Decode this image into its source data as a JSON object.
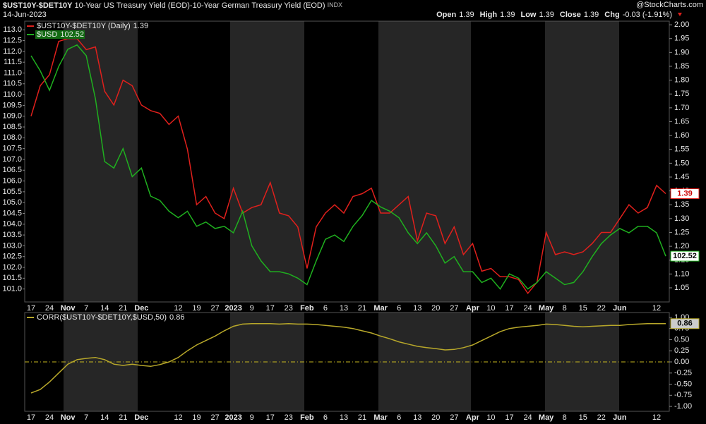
{
  "header": {
    "symbol": "$UST10Y-$DET10Y",
    "description": "10-Year US Treasury Yield (EOD)-10-Year German Treasury Yield (EOD)",
    "exchange": "INDX",
    "date": "14-Jun-2023",
    "brand": "@StockCharts.com",
    "quote": [
      {
        "label": "Open",
        "value": 1.39
      },
      {
        "label": "High",
        "value": 1.39
      },
      {
        "label": "Low",
        "value": 1.39
      },
      {
        "label": "Close",
        "value": 1.39
      },
      {
        "label": "Chg",
        "value": "-0.03 (-1.91%)"
      }
    ]
  },
  "chart_data": [
    {
      "type": "line",
      "y_axis_side": "left",
      "categories": [
        "17",
        null,
        "24",
        null,
        "Nov",
        null,
        "7",
        null,
        "14",
        null,
        "21",
        null,
        "Dec",
        null,
        null,
        null,
        "12",
        null,
        "19",
        null,
        "27",
        null,
        "2023",
        null,
        "9",
        null,
        "17",
        null,
        "23",
        null,
        "Feb",
        null,
        "6",
        null,
        "13",
        null,
        "21",
        null,
        "Mar",
        null,
        "6",
        null,
        "13",
        null,
        "20",
        null,
        "27",
        null,
        "Apr",
        null,
        "10",
        null,
        "17",
        null,
        "24",
        null,
        "May",
        null,
        "8",
        null,
        "15",
        null,
        "22",
        null,
        "Jun",
        null,
        null,
        null,
        "12",
        null
      ],
      "series": [
        {
          "name": "$UST10Y-$DET10Y (Daily)",
          "color": "#e0201c",
          "axis": "y2",
          "values": [
            1.67,
            1.78,
            1.82,
            1.94,
            1.95,
            1.95,
            1.91,
            1.92,
            1.76,
            1.71,
            1.8,
            1.78,
            1.71,
            1.69,
            1.68,
            1.64,
            1.67,
            1.55,
            1.35,
            1.38,
            1.32,
            1.3,
            1.41,
            1.32,
            1.34,
            1.35,
            1.43,
            1.32,
            1.31,
            1.27,
            1.12,
            1.27,
            1.32,
            1.35,
            1.32,
            1.38,
            1.39,
            1.41,
            1.32,
            1.32,
            1.35,
            1.38,
            1.22,
            1.32,
            1.31,
            1.21,
            1.27,
            1.17,
            1.21,
            1.11,
            1.12,
            1.09,
            1.09,
            1.08,
            1.03,
            1.07,
            1.25,
            1.17,
            1.18,
            1.17,
            1.18,
            1.21,
            1.25,
            1.25,
            1.3,
            1.35,
            1.32,
            1.34,
            1.42,
            1.39
          ]
        },
        {
          "name": "$USD",
          "color": "#1fb01f",
          "axis": "y",
          "values": [
            111.8,
            111.1,
            110.2,
            111.3,
            112.1,
            112.3,
            111.8,
            109.8,
            106.9,
            106.6,
            107.5,
            106.2,
            106.6,
            105.3,
            105.1,
            104.6,
            104.3,
            104.6,
            103.9,
            104.1,
            103.8,
            103.9,
            103.6,
            104.6,
            103.0,
            102.3,
            101.8,
            101.8,
            101.7,
            101.5,
            101.2,
            102.3,
            103.3,
            103.5,
            103.2,
            103.9,
            104.4,
            105.1,
            104.8,
            104.6,
            104.3,
            103.6,
            103.1,
            103.6,
            103.0,
            102.2,
            102.5,
            101.8,
            101.8,
            101.3,
            101.5,
            101.0,
            101.7,
            101.5,
            101.0,
            101.3,
            101.8,
            101.5,
            101.2,
            101.3,
            101.8,
            102.5,
            103.1,
            103.5,
            103.8,
            103.6,
            103.9,
            103.9,
            103.6,
            102.52
          ]
        }
      ],
      "ylim": [
        100.4,
        113.4
      ],
      "yticks": [
        {
          "value": 101,
          "label": "101.0"
        },
        101.5,
        {
          "value": 102,
          "label": "102.0"
        },
        102.5,
        {
          "value": 103,
          "label": "103.0"
        },
        103.5,
        {
          "value": 104,
          "label": "104.0"
        },
        104.5,
        {
          "value": 105,
          "label": "105.0"
        },
        105.5,
        {
          "value": 106,
          "label": "106.0"
        },
        106.5,
        {
          "value": 107,
          "label": "107.0"
        },
        107.5,
        {
          "value": 108,
          "label": "108.0"
        },
        108.5,
        {
          "value": 109,
          "label": "109.0"
        },
        109.5,
        {
          "value": 110,
          "label": "110.0"
        },
        110.5,
        {
          "value": 111,
          "label": "111.0"
        },
        111.5,
        {
          "value": 112,
          "label": "112.0"
        },
        112.5,
        {
          "value": 113,
          "label": "113.0"
        }
      ],
      "y2lim": [
        0.999,
        2.013
      ],
      "y2ticks": [
        1.05,
        {
          "value": 1.1,
          "label": "1.10"
        },
        1.15,
        {
          "value": 1.2,
          "label": "1.20"
        },
        1.25,
        {
          "value": 1.3,
          "label": "1.30"
        },
        1.35,
        {
          "value": 1.4,
          "label": "1.40"
        },
        1.45,
        {
          "value": 1.5,
          "label": "1.50"
        },
        1.55,
        {
          "value": 1.6,
          "label": "1.60"
        },
        1.65,
        {
          "value": 1.7,
          "label": "1.70"
        },
        1.75,
        {
          "value": 1.8,
          "label": "1.80"
        },
        1.85,
        {
          "value": 1.9,
          "label": "1.90"
        },
        1.95,
        {
          "value": 2,
          "label": "2.00"
        }
      ]
    },
    {
      "type": "line",
      "y_axis_side": "right",
      "zero_line": true,
      "series": [
        {
          "name": "CORR($UST10Y-$DET10Y,$USD,50)",
          "color": "#b8a82a",
          "values": [
            -0.7,
            -0.62,
            -0.45,
            -0.25,
            -0.05,
            0.05,
            0.08,
            0.1,
            0.05,
            -0.05,
            -0.08,
            -0.05,
            -0.08,
            -0.1,
            -0.06,
            0.0,
            0.1,
            0.25,
            0.38,
            0.48,
            0.58,
            0.7,
            0.8,
            0.85,
            0.86,
            0.86,
            0.86,
            0.85,
            0.86,
            0.85,
            0.85,
            0.84,
            0.82,
            0.8,
            0.78,
            0.75,
            0.7,
            0.65,
            0.58,
            0.52,
            0.45,
            0.4,
            0.35,
            0.32,
            0.3,
            0.27,
            0.28,
            0.32,
            0.38,
            0.48,
            0.58,
            0.68,
            0.75,
            0.78,
            0.8,
            0.82,
            0.85,
            0.84,
            0.82,
            0.8,
            0.79,
            0.8,
            0.81,
            0.82,
            0.82,
            0.84,
            0.85,
            0.86,
            0.86,
            0.86
          ]
        }
      ],
      "ylim": [
        -1.11,
        1.11
      ],
      "yticks": [
        {
          "value": 1,
          "label": "1.00"
        },
        0.75,
        {
          "value": 0.5,
          "label": "0.50"
        },
        0.25,
        {
          "value": 0,
          "label": "0.00"
        },
        -0.25,
        {
          "value": -0.5,
          "label": "-0.50"
        },
        -0.75,
        {
          "value": -1,
          "label": "-1.00"
        }
      ]
    }
  ]
}
